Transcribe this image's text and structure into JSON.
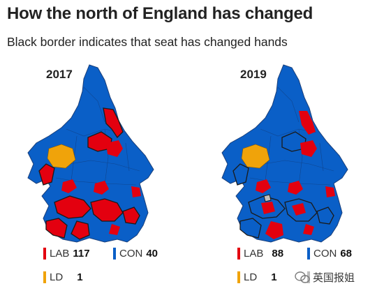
{
  "title": "How the north of England has changed",
  "subtitle": "Black border indicates that seat has changed hands",
  "colors": {
    "lab": "#e3000f",
    "con": "#0a5fc7",
    "ld": "#f0a30a",
    "other": "#bdbdbd",
    "border": "#1a1a1a"
  },
  "panels": [
    {
      "year": "2017",
      "legend": [
        {
          "party": "LAB",
          "seats": "117",
          "color": "#e3000f"
        },
        {
          "party": "CON",
          "seats": "40",
          "color": "#0a5fc7"
        },
        {
          "party": "LD",
          "seats": "1",
          "color": "#f0a30a"
        }
      ]
    },
    {
      "year": "2019",
      "legend": [
        {
          "party": "LAB",
          "seats": "88",
          "color": "#e3000f"
        },
        {
          "party": "CON",
          "seats": "68",
          "color": "#0a5fc7"
        },
        {
          "party": "LD",
          "seats": "1",
          "color": "#f0a30a"
        }
      ]
    }
  ],
  "watermark": {
    "text": "英国报姐",
    "icon": "wechat-icon"
  }
}
